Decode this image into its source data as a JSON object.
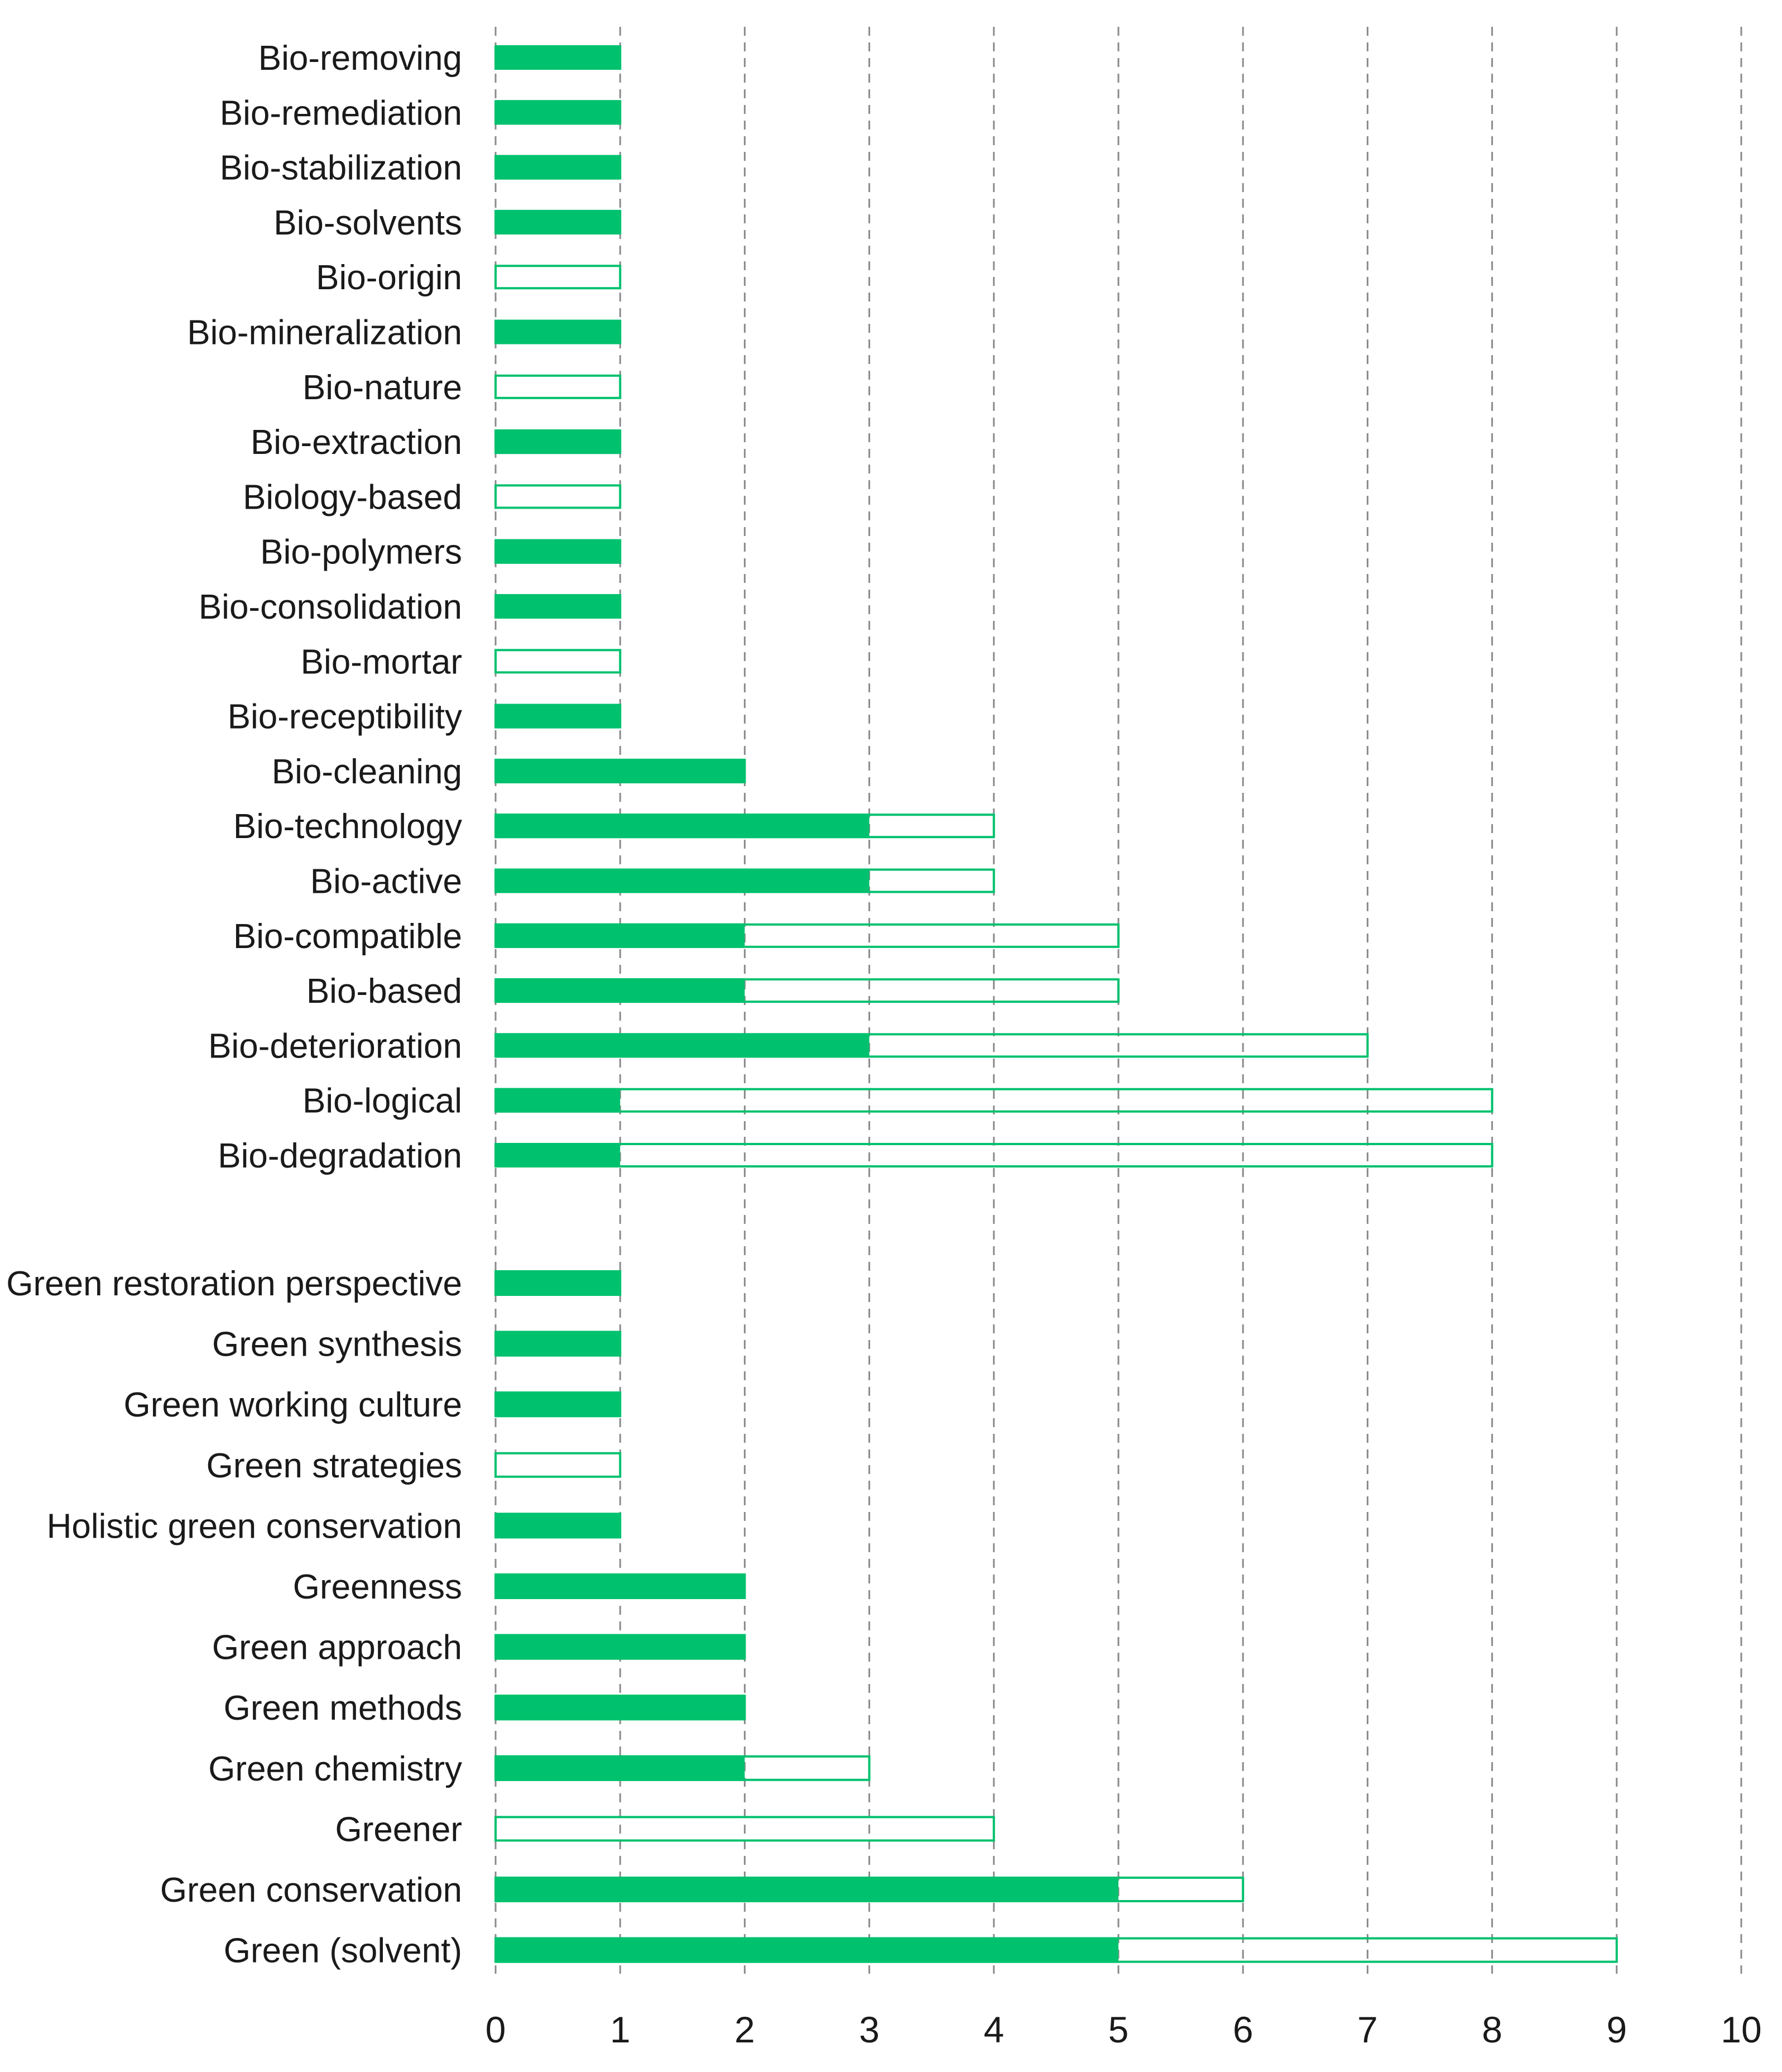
{
  "colors": {
    "filled": "#00c16e",
    "outline": "#00c16e",
    "grid": "#8a8a8a",
    "text": "#1a1a1a"
  },
  "chart_data": {
    "type": "bar",
    "orientation": "horizontal",
    "title": "",
    "xlabel": "",
    "ylabel": "",
    "xlim": [
      0,
      10
    ],
    "x_ticks": [
      0,
      1,
      2,
      3,
      4,
      5,
      6,
      7,
      8,
      9,
      10
    ],
    "grid": "vertical-dashed",
    "legend": "none",
    "groups": [
      {
        "categories": [
          "Bio-removing",
          "Bio-remediation",
          "Bio-stabilization",
          "Bio-solvents",
          "Bio-origin",
          "Bio-mineralization",
          "Bio-nature",
          "Bio-extraction",
          "Biology-based",
          "Bio-polymers",
          "Bio-consolidation",
          "Bio-mortar",
          "Bio-receptibility",
          "Bio-cleaning",
          "Bio-technology",
          "Bio-active",
          "Bio-compatible",
          "Bio-based",
          "Bio-deterioration",
          "Bio-logical",
          "Bio-degradation"
        ],
        "series": [
          {
            "values": [
              1,
              1,
              1,
              1,
              0,
              1,
              0,
              1,
              0,
              1,
              1,
              0,
              1,
              2,
              3,
              3,
              2,
              2,
              3,
              1,
              1
            ]
          },
          {
            "values": [
              1,
              1,
              1,
              1,
              1,
              1,
              1,
              1,
              1,
              1,
              1,
              1,
              1,
              2,
              4,
              4,
              5,
              5,
              7,
              8,
              8
            ]
          }
        ]
      },
      {
        "categories": [
          "Green restoration perspective",
          "Green synthesis",
          "Green working culture",
          "Green strategies",
          "Holistic green conservation",
          "Greenness",
          "Green approach",
          "Green methods",
          "Green chemistry",
          "Greener",
          "Green conservation",
          "Green (solvent)"
        ],
        "series": [
          {
            "values": [
              1,
              1,
              1,
              0,
              1,
              2,
              2,
              2,
              2,
              0,
              5,
              5
            ]
          },
          {
            "values": [
              1,
              1,
              1,
              1,
              1,
              2,
              2,
              2,
              3,
              4,
              6,
              9
            ]
          }
        ]
      }
    ]
  }
}
